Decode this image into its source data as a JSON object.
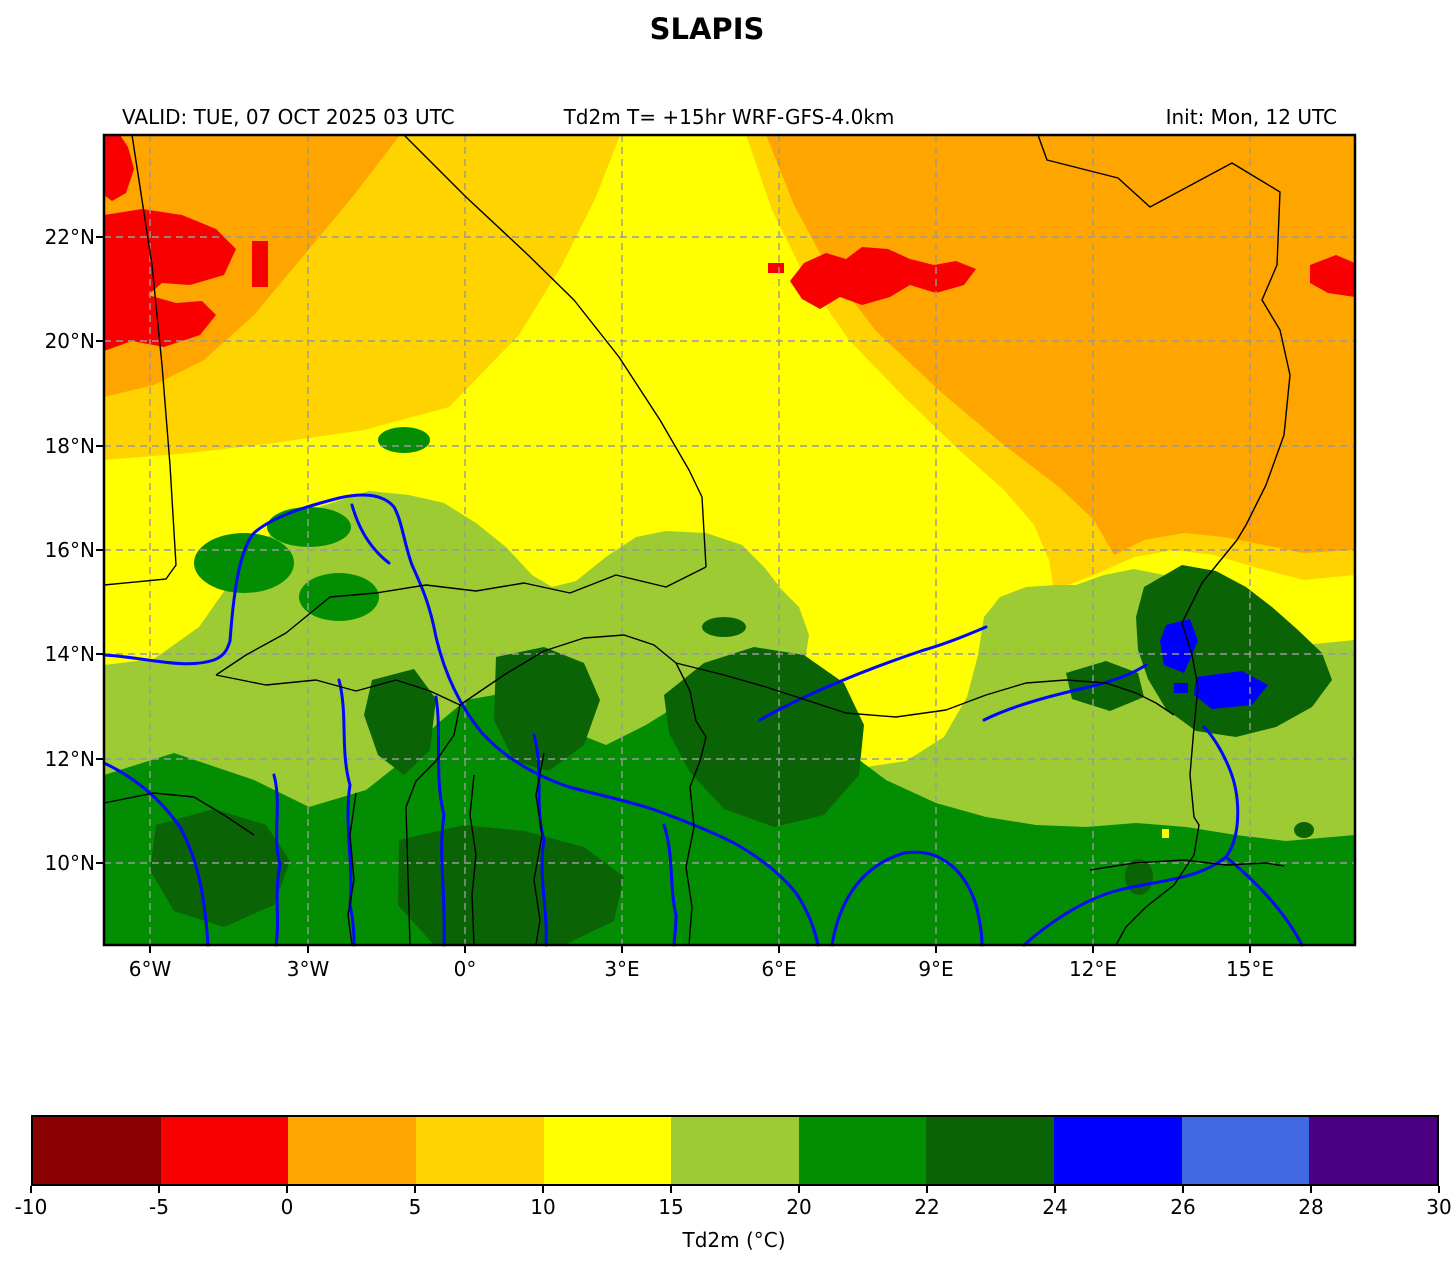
{
  "figure": {
    "title": "SLAPIS",
    "header": {
      "valid": "VALID: TUE, 07 OCT 2025 03 UTC",
      "product": "Td2m T= +15hr WRF-GFS-4.0km",
      "init": "Init: Mon, 12 UTC"
    }
  },
  "chart_data": {
    "type": "heatmap",
    "subtype": "filled-contour-weather-map",
    "title": "SLAPIS",
    "variable": "Td2m (2 m dew point temperature)",
    "units": "°C",
    "valid_time": "TUE, 07 OCT 2025 03 UTC",
    "forecast_lead": "+15hr",
    "model": "WRF-GFS-4.0km",
    "init_time": "Mon, 12 UTC",
    "x_axis": {
      "name": "longitude",
      "tick_labels": [
        "6°W",
        "3°W",
        "0°",
        "3°E",
        "6°E",
        "9°E",
        "12°E",
        "15°E"
      ],
      "range_deg": [
        -6.9,
        17.0
      ]
    },
    "y_axis": {
      "name": "latitude",
      "tick_labels": [
        "22°N",
        "20°N",
        "18°N",
        "16°N",
        "14°N",
        "12°N",
        "10°N"
      ],
      "range_deg": [
        8.4,
        24.0
      ]
    },
    "grid": {
      "visible": true,
      "style": "dashed",
      "lon_step_deg": 3,
      "lat_step_deg": 2
    },
    "colorbar": {
      "label": "Td2m (°C)",
      "orientation": "horizontal",
      "levels": [
        -10,
        -5,
        0,
        5,
        10,
        15,
        20,
        22,
        24,
        26,
        28,
        30
      ],
      "tick_labels": [
        "-10",
        "-5",
        "0",
        "5",
        "10",
        "15",
        "20",
        "22",
        "24",
        "26",
        "28",
        "30"
      ],
      "colors": [
        "#8B0000",
        "#F80000",
        "#FFA500",
        "#FFD300",
        "#FFFF00",
        "#9CCB33",
        "#028D02",
        "#0A6406",
        "#0000FF",
        "#4169E1",
        "#4B0082"
      ]
    },
    "field_summary": [
      {
        "area": "Sahara, north of ~19°N",
        "td2m_c": "0 to 5 (orange dominant)"
      },
      {
        "area": "red pockets near 6°W/21°N, 8-10°E/21.5°N and 16°E/21°N",
        "td2m_c": "-5 to 0"
      },
      {
        "area": "transition band ~16-19°N (west) sloping to ~14°N (east)",
        "td2m_c": "5 to 15 (gold then yellow)"
      },
      {
        "area": "large yellow region centered 0-6°E / 15-19°N with tongue to 12.5°N at 6-9°E",
        "td2m_c": "10 to 15"
      },
      {
        "area": "Sahel belt ~12-16°N",
        "td2m_c": "15 to 20 (yellow-green)"
      },
      {
        "area": "southern zone ~8.5-12°N",
        "td2m_c": "20 to 24 (green with dark-green patches)"
      },
      {
        "area": "Lake Chad region ~13.5°N/14°E",
        "td2m_c": "22 to 26 (dark green with blue lake pixels)"
      }
    ],
    "overlays": [
      "national borders (black)",
      "rivers (blue)",
      "dashed graticule (gray)"
    ]
  },
  "map": {
    "river_color": "#0008FF",
    "border_color": "#000000",
    "grid_color": "#9a9a9a",
    "frame_color": "#000000"
  }
}
